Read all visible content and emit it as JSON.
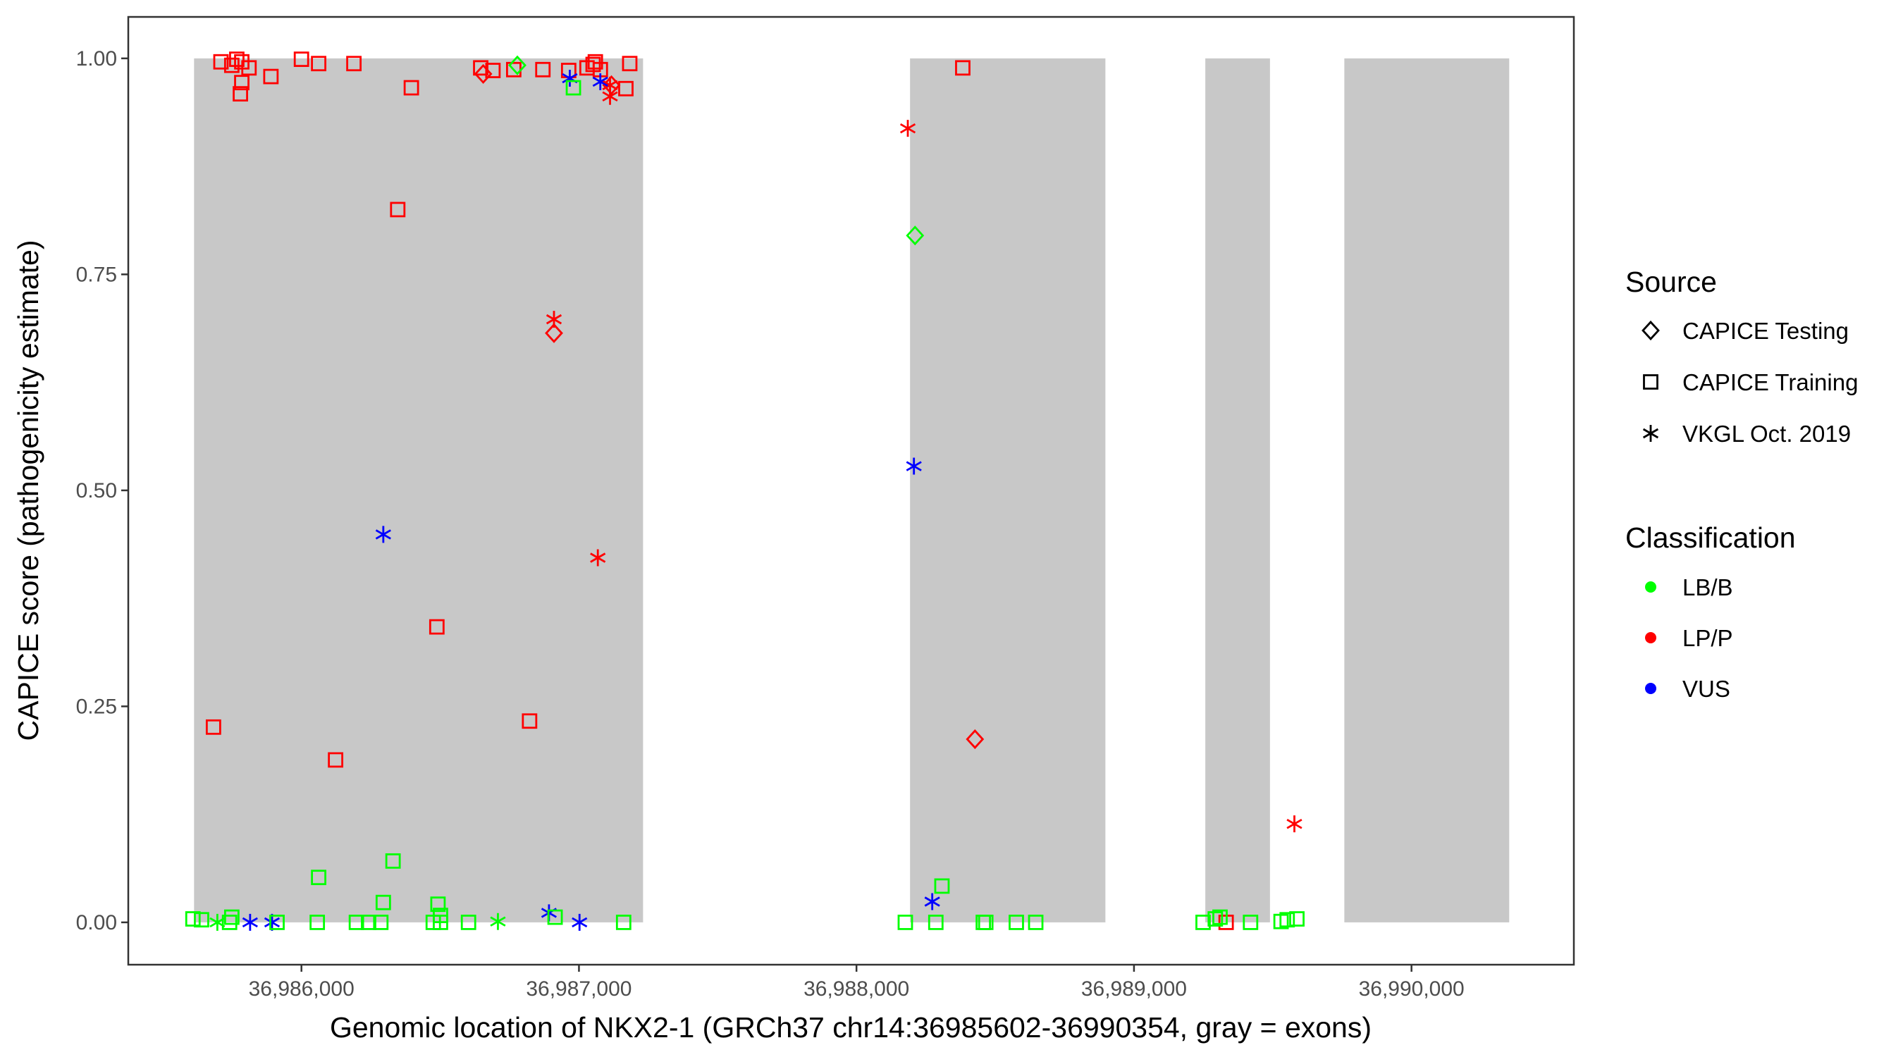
{
  "chart_data": {
    "type": "scatter",
    "xlabel": "Genomic location of NKX2-1 (GRCh37 chr14:36985602-36990354, gray = exons)",
    "ylabel": "CAPICE score (pathogenicity estimate)",
    "xlim": [
      36985376,
      36990585
    ],
    "ylim": [
      -0.049,
      1.048
    ],
    "x_ticks": [
      36986000,
      36987000,
      36988000,
      36989000,
      36990000
    ],
    "x_tick_labels": [
      "36,986,000",
      "36,987,000",
      "36,988,000",
      "36,989,000",
      "36,990,000"
    ],
    "y_ticks": [
      0,
      0.25,
      0.5,
      0.75,
      1.0
    ],
    "y_tick_labels": [
      "0.00",
      "0.25",
      "0.50",
      "0.75",
      "1.00"
    ],
    "grid": false,
    "exons": [
      [
        36985613,
        36987231
      ],
      [
        36988193,
        36988897
      ],
      [
        36989257,
        36989490
      ],
      [
        36989758,
        36990352
      ]
    ],
    "exon_color": "#c8c8c8",
    "legend": {
      "placement": "right",
      "source_title": "Source",
      "sources": [
        {
          "label": "CAPICE Testing",
          "shape": "diamond"
        },
        {
          "label": "CAPICE Training",
          "shape": "square"
        },
        {
          "label": "VKGL Oct. 2019",
          "shape": "asterisk"
        }
      ],
      "class_title": "Classification",
      "classes": [
        {
          "label": "LB/B",
          "color": "#00ff00"
        },
        {
          "label": "LP/P",
          "color": "#ff0000"
        },
        {
          "label": "VUS",
          "color": "#0000ff"
        }
      ]
    },
    "point_fields": [
      "position",
      "score",
      "source_index",
      "class_index"
    ],
    "points": [
      [
        36985710,
        0.996,
        1,
        1
      ],
      [
        36985749,
        0.992,
        1,
        1
      ],
      [
        36985767,
        0.999,
        1,
        1
      ],
      [
        36985785,
        0.996,
        1,
        1
      ],
      [
        36985811,
        0.989,
        1,
        1
      ],
      [
        36985780,
        0.959,
        1,
        1
      ],
      [
        36985785,
        0.972,
        1,
        1
      ],
      [
        36985890,
        0.979,
        1,
        1
      ],
      [
        36986000,
        0.999,
        1,
        1
      ],
      [
        36986062,
        0.994,
        1,
        1
      ],
      [
        36986189,
        0.994,
        1,
        1
      ],
      [
        36986396,
        0.966,
        1,
        1
      ],
      [
        36986347,
        0.825,
        1,
        1
      ],
      [
        36986646,
        0.989,
        1,
        1
      ],
      [
        36986690,
        0.986,
        1,
        1
      ],
      [
        36986765,
        0.987,
        1,
        1
      ],
      [
        36986870,
        0.987,
        1,
        1
      ],
      [
        36986963,
        0.986,
        1,
        1
      ],
      [
        36987029,
        0.989,
        1,
        1
      ],
      [
        36987051,
        0.993,
        1,
        1
      ],
      [
        36987059,
        0.996,
        1,
        1
      ],
      [
        36987077,
        0.987,
        1,
        1
      ],
      [
        36987169,
        0.965,
        1,
        1
      ],
      [
        36987183,
        0.994,
        1,
        1
      ],
      [
        36985683,
        0.226,
        1,
        1
      ],
      [
        36986123,
        0.188,
        1,
        1
      ],
      [
        36986488,
        0.342,
        1,
        1
      ],
      [
        36986822,
        0.233,
        1,
        1
      ],
      [
        36988383,
        0.989,
        1,
        1
      ],
      [
        36989332,
        0.0,
        1,
        1
      ],
      [
        36986655,
        0.982,
        0,
        1
      ],
      [
        36986910,
        0.682,
        0,
        1
      ],
      [
        36987117,
        0.969,
        0,
        1
      ],
      [
        36988427,
        0.212,
        0,
        1
      ],
      [
        36986910,
        0.698,
        2,
        1
      ],
      [
        36987068,
        0.422,
        2,
        1
      ],
      [
        36987112,
        0.969,
        2,
        1
      ],
      [
        36987112,
        0.956,
        2,
        1
      ],
      [
        36988185,
        0.919,
        2,
        1
      ],
      [
        36989578,
        0.114,
        2,
        1
      ],
      [
        36986967,
        0.977,
        2,
        2
      ],
      [
        36987077,
        0.973,
        2,
        2
      ],
      [
        36986295,
        0.449,
        2,
        2
      ],
      [
        36988207,
        0.528,
        2,
        2
      ],
      [
        36988273,
        0.024,
        2,
        2
      ],
      [
        36985815,
        0.0,
        2,
        2
      ],
      [
        36985894,
        0.0,
        2,
        2
      ],
      [
        36986892,
        0.011,
        2,
        2
      ],
      [
        36987002,
        0.0,
        2,
        2
      ],
      [
        36986778,
        0.992,
        0,
        0
      ],
      [
        36988211,
        0.795,
        0,
        0
      ],
      [
        36986980,
        0.966,
        1,
        0
      ],
      [
        36986062,
        0.052,
        1,
        0
      ],
      [
        36986330,
        0.071,
        1,
        0
      ],
      [
        36986295,
        0.023,
        1,
        0
      ],
      [
        36986492,
        0.021,
        1,
        0
      ],
      [
        36986501,
        0.008,
        1,
        0
      ],
      [
        36985609,
        0.004,
        1,
        0
      ],
      [
        36985640,
        0.003,
        1,
        0
      ],
      [
        36985741,
        0.0,
        1,
        0
      ],
      [
        36985749,
        0.006,
        1,
        0
      ],
      [
        36985912,
        0.0,
        1,
        0
      ],
      [
        36986057,
        0.0,
        1,
        0
      ],
      [
        36986198,
        0.0,
        1,
        0
      ],
      [
        36986242,
        0.0,
        1,
        0
      ],
      [
        36986286,
        0.0,
        1,
        0
      ],
      [
        36986475,
        0.0,
        1,
        0
      ],
      [
        36986501,
        0.0,
        1,
        0
      ],
      [
        36986602,
        0.0,
        1,
        0
      ],
      [
        36986914,
        0.006,
        1,
        0
      ],
      [
        36987161,
        0.0,
        1,
        0
      ],
      [
        36988176,
        0.0,
        1,
        0
      ],
      [
        36988286,
        0.0,
        1,
        0
      ],
      [
        36988308,
        0.042,
        1,
        0
      ],
      [
        36988457,
        0.0,
        1,
        0
      ],
      [
        36988466,
        0.0,
        1,
        0
      ],
      [
        36988576,
        0.0,
        1,
        0
      ],
      [
        36988646,
        0.0,
        1,
        0
      ],
      [
        36989249,
        0.0,
        1,
        0
      ],
      [
        36989293,
        0.004,
        1,
        0
      ],
      [
        36989310,
        0.006,
        1,
        0
      ],
      [
        36989420,
        0.0,
        1,
        0
      ],
      [
        36989530,
        0.001,
        1,
        0
      ],
      [
        36989552,
        0.003,
        1,
        0
      ],
      [
        36989587,
        0.004,
        1,
        0
      ],
      [
        36985697,
        0.0,
        2,
        0
      ],
      [
        36986708,
        0.001,
        2,
        0
      ]
    ]
  }
}
